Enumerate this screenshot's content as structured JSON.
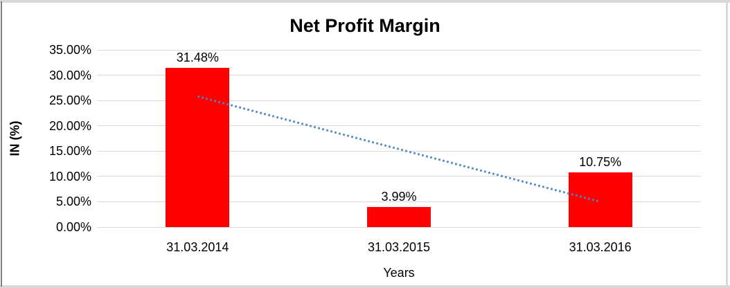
{
  "chart_data": {
    "type": "bar",
    "title": "Net Profit Margin",
    "xlabel": "Years",
    "ylabel": "IN (%)",
    "categories": [
      "31.03.2014",
      "31.03.2015",
      "31.03.2016"
    ],
    "values": [
      31.48,
      3.99,
      10.75
    ],
    "data_labels": [
      "31.48%",
      "3.99%",
      "10.75%"
    ],
    "ytick_labels": [
      "0.00%",
      "5.00%",
      "10.00%",
      "15.00%",
      "20.00%",
      "25.00%",
      "30.00%",
      "35.00%"
    ],
    "ytick_step": 5,
    "ylim": [
      0,
      35
    ],
    "grid": "horizontal",
    "legend": "none",
    "colors": {
      "bar": "#ff0000",
      "gridline": "#d9d9d9",
      "trendline": "#4a86c8",
      "frame_edge": "#d9d9d9",
      "frame_left_edge": "#7f7f7f",
      "text": "#000000"
    },
    "trendline": {
      "type": "linear",
      "style": "dotted",
      "start_value": 25.8,
      "end_value": 5.0
    }
  }
}
